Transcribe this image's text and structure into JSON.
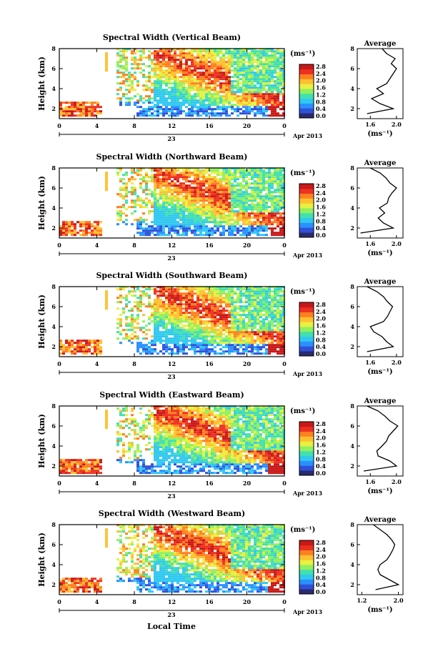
{
  "figure": {
    "xlabel_bottom": "Local Time",
    "date_label": "Apr 2013",
    "day_label": "23"
  },
  "colorbar": {
    "unit": "(ms⁻¹)",
    "ticks": [
      "0.0",
      "0.4",
      "0.8",
      "1.2",
      "1.6",
      "2.0",
      "2.4",
      "2.8"
    ],
    "colors": [
      "#2a2a6e",
      "#3050d8",
      "#2a90ff",
      "#30c8f0",
      "#40e0b0",
      "#90f060",
      "#e8f040",
      "#ffc030",
      "#ff8020",
      "#ee3020",
      "#c81818"
    ]
  },
  "chart_data": [
    {
      "type": "heatmap",
      "title": "Spectral Width (Vertical Beam)",
      "ylabel": "Height (km)",
      "xlabel": "",
      "xticks": [
        "0",
        "4",
        "8",
        "12",
        "16",
        "20",
        "0"
      ],
      "yticks": [
        "2",
        "4",
        "6",
        "8"
      ],
      "xlim": [
        0,
        24
      ],
      "ylim": [
        1,
        8
      ],
      "profile": {
        "title": "Average",
        "xlabel": "(ms⁻¹)",
        "xticks": [
          "1.6",
          "2.0"
        ],
        "xlim": [
          1.4,
          2.1
        ],
        "heights": [
          1.5,
          2.0,
          2.5,
          3.0,
          3.5,
          4.0,
          4.5,
          5.0,
          5.5,
          6.0,
          6.5,
          7.0,
          7.5,
          8.0
        ],
        "values": [
          1.55,
          1.95,
          1.75,
          1.62,
          1.8,
          1.7,
          1.85,
          1.9,
          1.95,
          2.0,
          1.92,
          1.98,
          1.85,
          1.78
        ]
      }
    },
    {
      "type": "heatmap",
      "title": "Spectral Width (Northward Beam)",
      "ylabel": "Height (km)",
      "xlabel": "",
      "xticks": [
        "0",
        "4",
        "8",
        "12",
        "16",
        "20",
        "0"
      ],
      "yticks": [
        "2",
        "4",
        "6",
        "8"
      ],
      "xlim": [
        0,
        24
      ],
      "ylim": [
        1,
        8
      ],
      "profile": {
        "title": "Average",
        "xlabel": "(ms⁻¹)",
        "xticks": [
          "1.6",
          "2.0"
        ],
        "xlim": [
          1.4,
          2.1
        ],
        "heights": [
          1.5,
          2.0,
          2.5,
          3.0,
          3.5,
          4.0,
          4.5,
          5.0,
          5.5,
          6.0,
          6.5,
          7.0,
          7.5,
          8.0
        ],
        "values": [
          1.45,
          1.95,
          1.8,
          1.72,
          1.82,
          1.74,
          1.86,
          1.88,
          1.93,
          2.0,
          1.9,
          1.84,
          1.75,
          1.6
        ]
      }
    },
    {
      "type": "heatmap",
      "title": "Spectral Width (Southward Beam)",
      "ylabel": "Height (km)",
      "xlabel": "",
      "xticks": [
        "0",
        "4",
        "8",
        "12",
        "16",
        "20",
        "0"
      ],
      "yticks": [
        "2",
        "4",
        "6",
        "8"
      ],
      "xlim": [
        0,
        24
      ],
      "ylim": [
        1,
        8
      ],
      "profile": {
        "title": "Average",
        "xlabel": "(ms⁻¹)",
        "xticks": [
          "1.6",
          "2.0"
        ],
        "xlim": [
          1.4,
          2.1
        ],
        "heights": [
          1.5,
          2.0,
          2.5,
          3.0,
          3.5,
          4.0,
          4.5,
          5.0,
          5.5,
          6.0,
          6.5,
          7.0,
          7.5,
          8.0
        ],
        "values": [
          1.55,
          1.95,
          1.85,
          1.78,
          1.65,
          1.6,
          1.8,
          1.86,
          1.9,
          1.94,
          1.86,
          1.8,
          1.7,
          1.55
        ]
      }
    },
    {
      "type": "heatmap",
      "title": "Spectral Width (Eastward Beam)",
      "ylabel": "Height (km)",
      "xlabel": "",
      "xticks": [
        "0",
        "4",
        "8",
        "12",
        "16",
        "20",
        "0"
      ],
      "yticks": [
        "2",
        "4",
        "6",
        "8"
      ],
      "xlim": [
        0,
        24
      ],
      "ylim": [
        1,
        8
      ],
      "profile": {
        "title": "Average",
        "xlabel": "(ms⁻¹)",
        "xticks": [
          "1.6",
          "2.0"
        ],
        "xlim": [
          1.4,
          2.1
        ],
        "heights": [
          1.5,
          2.0,
          2.5,
          3.0,
          3.5,
          4.0,
          4.5,
          5.0,
          5.5,
          6.0,
          6.5,
          7.0,
          7.5,
          8.0
        ],
        "values": [
          1.5,
          2.0,
          1.9,
          1.72,
          1.7,
          1.78,
          1.85,
          1.88,
          1.95,
          2.02,
          1.9,
          1.82,
          1.72,
          1.55
        ]
      }
    },
    {
      "type": "heatmap",
      "title": "Spectral Width (Westward Beam)",
      "ylabel": "Height (km)",
      "xlabel": "Local Time",
      "xticks": [
        "0",
        "4",
        "8",
        "12",
        "16",
        "20",
        "0"
      ],
      "yticks": [
        "2",
        "4",
        "6",
        "8"
      ],
      "xlim": [
        0,
        24
      ],
      "ylim": [
        1,
        8
      ],
      "profile": {
        "title": "Average",
        "xlabel": "(ms⁻¹)",
        "xticks": [
          "1.2",
          "2.0"
        ],
        "xlim": [
          1.1,
          2.1
        ],
        "heights": [
          1.5,
          2.0,
          2.5,
          3.0,
          3.5,
          4.0,
          4.5,
          5.0,
          5.5,
          6.0,
          6.5,
          7.0,
          7.5,
          8.0
        ],
        "values": [
          1.5,
          2.0,
          1.8,
          1.6,
          1.55,
          1.6,
          1.75,
          1.82,
          1.88,
          1.92,
          1.85,
          1.75,
          1.6,
          1.45
        ]
      }
    }
  ]
}
